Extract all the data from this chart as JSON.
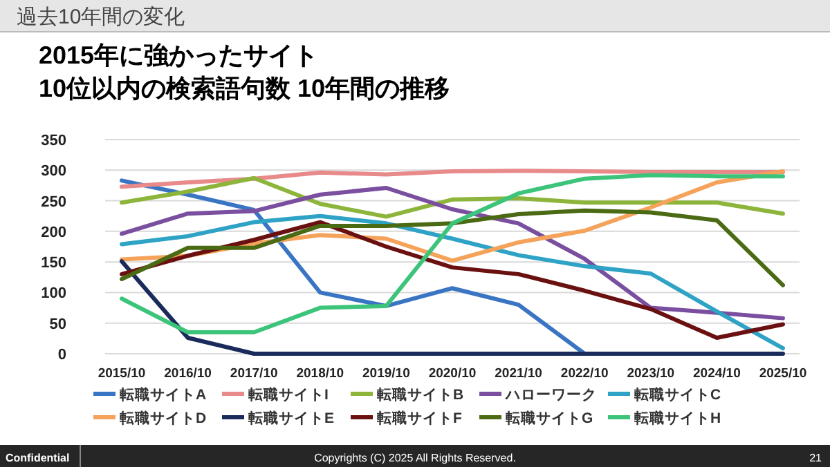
{
  "chart_data": {
    "type": "line",
    "title": "2015年に強かったサイト",
    "subtitle": "10位以内の検索語句数 10年間の推移",
    "annotations": [
      "過去10年間の変化",
      "Confidential",
      "Copyrights (C) 2025 All Rights Reserved.",
      "21"
    ],
    "categories": [
      "2015/10",
      "2016/10",
      "2017/10",
      "2018/10",
      "2019/10",
      "2020/10",
      "2021/10",
      "2022/10",
      "2023/10",
      "2024/10",
      "2025/10"
    ],
    "ylim": [
      0,
      350
    ],
    "yticks": [
      0,
      50,
      100,
      150,
      200,
      250,
      300,
      350
    ],
    "grid": "y",
    "legend": "bottom",
    "marker": "none",
    "line_style": "solid",
    "series": [
      {
        "name": "転職サイトA",
        "color": "#3a75c4",
        "values": [
          283,
          260,
          235,
          100,
          78,
          107,
          80,
          0,
          null,
          null,
          null
        ]
      },
      {
        "name": "転職サイトI",
        "color": "#e88a8a",
        "values": [
          273,
          280,
          286,
          296,
          293,
          298,
          299,
          298,
          297,
          297,
          297
        ]
      },
      {
        "name": "転職サイトB",
        "color": "#8db53c",
        "values": [
          247,
          265,
          287,
          245,
          224,
          252,
          254,
          247,
          247,
          247,
          229
        ]
      },
      {
        "name": "ハローワーク",
        "color": "#7a4fa0",
        "values": [
          196,
          229,
          233,
          260,
          271,
          236,
          213,
          155,
          75,
          67,
          58
        ]
      },
      {
        "name": "転職サイトC",
        "color": "#2ea3c6",
        "values": [
          179,
          192,
          215,
          225,
          213,
          188,
          161,
          143,
          131,
          69,
          9
        ]
      },
      {
        "name": "転職サイトD",
        "color": "#f5a25a",
        "values": [
          154,
          160,
          180,
          194,
          188,
          152,
          182,
          201,
          239,
          280,
          298
        ]
      },
      {
        "name": "転職サイトE",
        "color": "#1a2a5a",
        "values": [
          151,
          26,
          0,
          0,
          0,
          0,
          0,
          0,
          0,
          0,
          0
        ]
      },
      {
        "name": "転職サイトF",
        "color": "#6b1010",
        "values": [
          130,
          160,
          186,
          215,
          175,
          141,
          130,
          103,
          73,
          26,
          48
        ]
      },
      {
        "name": "転職サイトG",
        "color": "#4a6a14",
        "values": [
          122,
          173,
          173,
          209,
          209,
          213,
          228,
          234,
          231,
          218,
          112
        ]
      },
      {
        "name": "転職サイトH",
        "color": "#3cc47a",
        "values": [
          90,
          35,
          35,
          75,
          78,
          213,
          262,
          286,
          292,
          290,
          290
        ]
      }
    ]
  }
}
